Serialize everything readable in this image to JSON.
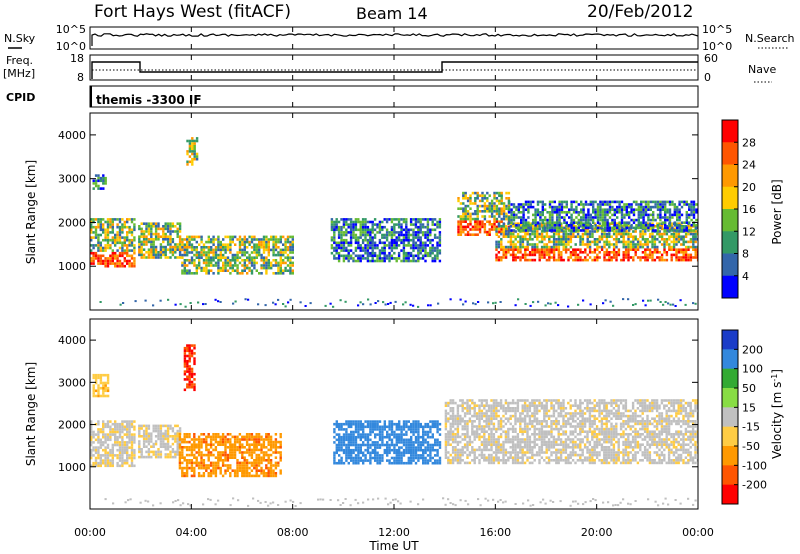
{
  "header": {
    "station": "Fort Hays West (fitACF)",
    "beam": "Beam 14",
    "date": "20/Feb/2012"
  },
  "strip_labels": {
    "nsky": "N.Sky",
    "nsearch": "N.Search",
    "freq_top": "Freq.",
    "freq_unit": "[MHz]",
    "nave": "Nave",
    "cpid": "CPID",
    "cpid_value": "themis -3300 IF"
  },
  "strip_ticks": {
    "noise_left_top": "10^5",
    "noise_left_bottom": "10^0",
    "noise_right_top": "10^5",
    "noise_right_bottom": "10^0",
    "freq_left_top": "18",
    "freq_left_bottom": "8",
    "nave_right_top": "60",
    "nave_right_bottom": "0"
  },
  "x_axis": {
    "title": "Time UT",
    "ticks": [
      "00:00",
      "04:00",
      "08:00",
      "12:00",
      "16:00",
      "20:00",
      "00:00"
    ]
  },
  "power_colorbar": {
    "title": "Power [dB]",
    "ticks": [
      "28",
      "24",
      "20",
      "16",
      "12",
      "8",
      "4"
    ],
    "colors": [
      "#ff0000",
      "#ff5500",
      "#ff9900",
      "#ffcc00",
      "#66bb33",
      "#339966",
      "#3366aa",
      "#0000ff"
    ]
  },
  "velocity_colorbar": {
    "title": "Velocity [m s^-1]",
    "title_main": "Velocity [m s",
    "title_sup": "-1",
    "title_end": "]",
    "ticks": [
      "200",
      "100",
      "50",
      "15",
      "-15",
      "-50",
      "-100",
      "-200"
    ],
    "colors": [
      "#1a3cc8",
      "#3388dd",
      "#33aa33",
      "#88dd44",
      "#c0c0c0",
      "#ffcc44",
      "#ff9900",
      "#ff5500",
      "#ff0000"
    ]
  },
  "chart_data": {
    "type": "heatmap",
    "x_unit": "hours UT",
    "xlim": [
      0,
      24
    ],
    "ylabel": "Slant Range [km]",
    "ylim": [
      0,
      4500
    ],
    "yticks": [
      1000,
      2000,
      3000,
      4000
    ],
    "panels": [
      {
        "name": "power",
        "regions": [
          {
            "t0": 0.0,
            "t1": 1.8,
            "r0": 1000,
            "r1": 2100,
            "level": "high"
          },
          {
            "t0": 0.1,
            "t1": 0.6,
            "r0": 2750,
            "r1": 3100,
            "level": "low"
          },
          {
            "t0": 1.9,
            "t1": 3.6,
            "r0": 1200,
            "r1": 2000,
            "level": "mid"
          },
          {
            "t0": 3.8,
            "t1": 4.2,
            "r0": 3300,
            "r1": 3950,
            "level": "mid"
          },
          {
            "t0": 3.6,
            "t1": 8.0,
            "r0": 850,
            "r1": 1700,
            "level": "mid"
          },
          {
            "t0": 9.5,
            "t1": 13.8,
            "r0": 1100,
            "r1": 2100,
            "level": "low"
          },
          {
            "t0": 14.5,
            "t1": 16.5,
            "r0": 1700,
            "r1": 2700,
            "level": "high"
          },
          {
            "t0": 16.0,
            "t1": 24.0,
            "r0": 1150,
            "r1": 2000,
            "level": "high"
          },
          {
            "t0": 16.5,
            "t1": 24.0,
            "r0": 1800,
            "r1": 2500,
            "level": "low"
          }
        ]
      },
      {
        "name": "velocity",
        "regions": [
          {
            "t0": 0.0,
            "t1": 1.8,
            "r0": 1000,
            "r1": 2100,
            "value": -10
          },
          {
            "t0": 0.1,
            "t1": 0.7,
            "r0": 2700,
            "r1": 3200,
            "value": -30
          },
          {
            "t0": 1.9,
            "t1": 3.6,
            "r0": 1200,
            "r1": 2000,
            "value": -10
          },
          {
            "t0": 3.7,
            "t1": 4.1,
            "r0": 2800,
            "r1": 3900,
            "value": -150
          },
          {
            "t0": 3.5,
            "t1": 7.5,
            "r0": 800,
            "r1": 1800,
            "value": -70
          },
          {
            "t0": 9.6,
            "t1": 13.8,
            "r0": 1100,
            "r1": 2100,
            "value": 120
          },
          {
            "t0": 14.0,
            "t1": 24.0,
            "r0": 1100,
            "r1": 2600,
            "value": -5
          }
        ]
      }
    ]
  }
}
